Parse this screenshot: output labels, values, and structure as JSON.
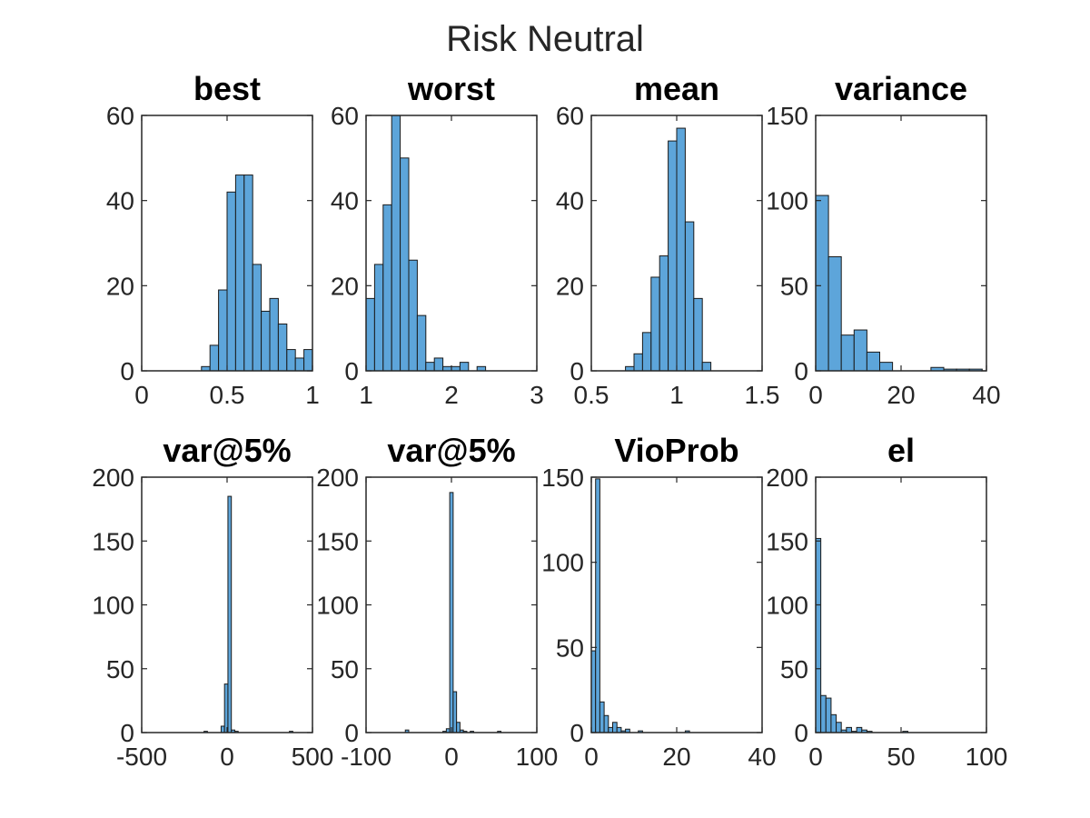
{
  "figure": {
    "title": "Risk Neutral",
    "bar_color": "#5DA5DA",
    "edge_color": "#1a1a1a"
  },
  "chart_data": [
    {
      "type": "bar",
      "title": "best",
      "xlim": [
        0,
        1
      ],
      "ylim": [
        0,
        60
      ],
      "xticks": [
        0,
        0.5,
        1
      ],
      "xtick_labels": [
        "0",
        "0.5",
        "1"
      ],
      "yticks": [
        0,
        20,
        40,
        60
      ],
      "ytick_labels": [
        "0",
        "20",
        "40",
        "60"
      ],
      "bins": [
        {
          "x0": 0.35,
          "x1": 0.4,
          "y": 1
        },
        {
          "x0": 0.4,
          "x1": 0.45,
          "y": 6
        },
        {
          "x0": 0.45,
          "x1": 0.5,
          "y": 19
        },
        {
          "x0": 0.5,
          "x1": 0.55,
          "y": 42
        },
        {
          "x0": 0.55,
          "x1": 0.6,
          "y": 46
        },
        {
          "x0": 0.6,
          "x1": 0.65,
          "y": 46
        },
        {
          "x0": 0.65,
          "x1": 0.7,
          "y": 25
        },
        {
          "x0": 0.7,
          "x1": 0.75,
          "y": 14
        },
        {
          "x0": 0.75,
          "x1": 0.8,
          "y": 17
        },
        {
          "x0": 0.8,
          "x1": 0.85,
          "y": 11
        },
        {
          "x0": 0.85,
          "x1": 0.9,
          "y": 5
        },
        {
          "x0": 0.9,
          "x1": 0.95,
          "y": 3
        },
        {
          "x0": 0.95,
          "x1": 1.0,
          "y": 5
        }
      ]
    },
    {
      "type": "bar",
      "title": "worst",
      "xlim": [
        1,
        3
      ],
      "ylim": [
        0,
        60
      ],
      "xticks": [
        1,
        2,
        3
      ],
      "xtick_labels": [
        "1",
        "2",
        "3"
      ],
      "yticks": [
        0,
        20,
        40,
        60
      ],
      "ytick_labels": [
        "0",
        "20",
        "40",
        "60"
      ],
      "bins": [
        {
          "x0": 1.0,
          "x1": 1.1,
          "y": 17
        },
        {
          "x0": 1.1,
          "x1": 1.2,
          "y": 25
        },
        {
          "x0": 1.2,
          "x1": 1.3,
          "y": 39
        },
        {
          "x0": 1.3,
          "x1": 1.4,
          "y": 60
        },
        {
          "x0": 1.4,
          "x1": 1.5,
          "y": 50
        },
        {
          "x0": 1.5,
          "x1": 1.6,
          "y": 26
        },
        {
          "x0": 1.6,
          "x1": 1.7,
          "y": 13
        },
        {
          "x0": 1.7,
          "x1": 1.8,
          "y": 2
        },
        {
          "x0": 1.8,
          "x1": 1.9,
          "y": 3
        },
        {
          "x0": 1.9,
          "x1": 2.0,
          "y": 1
        },
        {
          "x0": 2.0,
          "x1": 2.1,
          "y": 1
        },
        {
          "x0": 2.1,
          "x1": 2.2,
          "y": 2
        },
        {
          "x0": 2.2,
          "x1": 2.3,
          "y": 0
        },
        {
          "x0": 2.3,
          "x1": 2.4,
          "y": 1
        }
      ]
    },
    {
      "type": "bar",
      "title": "mean",
      "xlim": [
        0.5,
        1.5
      ],
      "ylim": [
        0,
        60
      ],
      "xticks": [
        0.5,
        1,
        1.5
      ],
      "xtick_labels": [
        "0.5",
        "1",
        "1.5"
      ],
      "yticks": [
        0,
        20,
        40,
        60
      ],
      "ytick_labels": [
        "0",
        "20",
        "40",
        "60"
      ],
      "bins": [
        {
          "x0": 0.7,
          "x1": 0.75,
          "y": 1
        },
        {
          "x0": 0.75,
          "x1": 0.8,
          "y": 4
        },
        {
          "x0": 0.8,
          "x1": 0.85,
          "y": 9
        },
        {
          "x0": 0.85,
          "x1": 0.9,
          "y": 22
        },
        {
          "x0": 0.9,
          "x1": 0.95,
          "y": 27
        },
        {
          "x0": 0.95,
          "x1": 1.0,
          "y": 54
        },
        {
          "x0": 1.0,
          "x1": 1.05,
          "y": 57
        },
        {
          "x0": 1.05,
          "x1": 1.1,
          "y": 35
        },
        {
          "x0": 1.1,
          "x1": 1.15,
          "y": 17
        },
        {
          "x0": 1.15,
          "x1": 1.2,
          "y": 2
        }
      ]
    },
    {
      "type": "bar",
      "title": "variance",
      "xlim": [
        0,
        40
      ],
      "ylim": [
        0,
        150
      ],
      "xticks": [
        0,
        20,
        40
      ],
      "xtick_labels": [
        "0",
        "20",
        "40"
      ],
      "yticks": [
        0,
        50,
        100,
        150
      ],
      "ytick_labels": [
        "0",
        "50",
        "100",
        "150"
      ],
      "bins": [
        {
          "x0": 0,
          "x1": 3,
          "y": 103
        },
        {
          "x0": 3,
          "x1": 6,
          "y": 67
        },
        {
          "x0": 6,
          "x1": 9,
          "y": 21
        },
        {
          "x0": 9,
          "x1": 12,
          "y": 24
        },
        {
          "x0": 12,
          "x1": 15,
          "y": 11
        },
        {
          "x0": 15,
          "x1": 18,
          "y": 5
        },
        {
          "x0": 18,
          "x1": 21,
          "y": 0
        },
        {
          "x0": 21,
          "x1": 24,
          "y": 0
        },
        {
          "x0": 24,
          "x1": 27,
          "y": 0
        },
        {
          "x0": 27,
          "x1": 30,
          "y": 2
        },
        {
          "x0": 30,
          "x1": 33,
          "y": 1
        },
        {
          "x0": 33,
          "x1": 36,
          "y": 1
        },
        {
          "x0": 36,
          "x1": 39,
          "y": 1
        }
      ]
    },
    {
      "type": "bar",
      "title": "var@5%",
      "xlim": [
        -500,
        500
      ],
      "ylim": [
        0,
        200
      ],
      "xticks": [
        -500,
        0,
        500
      ],
      "xtick_labels": [
        "-500",
        "0",
        "500"
      ],
      "yticks": [
        0,
        50,
        100,
        150,
        200
      ],
      "ytick_labels": [
        "0",
        "50",
        "100",
        "150",
        "200"
      ],
      "bins": [
        {
          "x0": -135,
          "x1": -115,
          "y": 1
        },
        {
          "x0": -35,
          "x1": -15,
          "y": 5
        },
        {
          "x0": -15,
          "x1": 5,
          "y": 38
        },
        {
          "x0": 5,
          "x1": 25,
          "y": 185
        },
        {
          "x0": 25,
          "x1": 45,
          "y": 2
        },
        {
          "x0": 45,
          "x1": 65,
          "y": 1
        },
        {
          "x0": 365,
          "x1": 385,
          "y": 1
        }
      ]
    },
    {
      "type": "bar",
      "title": "var@5%",
      "xlim": [
        -100,
        100
      ],
      "ylim": [
        0,
        200
      ],
      "xticks": [
        -100,
        0,
        100
      ],
      "xtick_labels": [
        "-100",
        "0",
        "100"
      ],
      "yticks": [
        0,
        50,
        100,
        150,
        200
      ],
      "ytick_labels": [
        "0",
        "50",
        "100",
        "150",
        "200"
      ],
      "bins": [
        {
          "x0": -54,
          "x1": -50,
          "y": 2
        },
        {
          "x0": -10,
          "x1": -6,
          "y": 1
        },
        {
          "x0": -6,
          "x1": -2,
          "y": 3
        },
        {
          "x0": -2,
          "x1": 2,
          "y": 188
        },
        {
          "x0": 2,
          "x1": 6,
          "y": 32
        },
        {
          "x0": 6,
          "x1": 10,
          "y": 8
        },
        {
          "x0": 10,
          "x1": 14,
          "y": 2
        },
        {
          "x0": 14,
          "x1": 18,
          "y": 1
        },
        {
          "x0": 22,
          "x1": 26,
          "y": 1
        },
        {
          "x0": 54,
          "x1": 58,
          "y": 1
        }
      ]
    },
    {
      "type": "bar",
      "title": "VioProb",
      "xlim": [
        0,
        40
      ],
      "ylim": [
        0,
        150
      ],
      "xticks": [
        0,
        20,
        40
      ],
      "xtick_labels": [
        "0",
        "20",
        "40"
      ],
      "yticks": [
        0,
        50,
        100,
        150
      ],
      "ytick_labels": [
        "0",
        "50",
        "100",
        "150"
      ],
      "bins": [
        {
          "x0": 0,
          "x1": 1,
          "y": 48
        },
        {
          "x0": 1,
          "x1": 2,
          "y": 149
        },
        {
          "x0": 2,
          "x1": 3,
          "y": 18
        },
        {
          "x0": 3,
          "x1": 4,
          "y": 10
        },
        {
          "x0": 4,
          "x1": 5,
          "y": 3
        },
        {
          "x0": 5,
          "x1": 6,
          "y": 6
        },
        {
          "x0": 6,
          "x1": 7,
          "y": 3
        },
        {
          "x0": 7,
          "x1": 8,
          "y": 1
        },
        {
          "x0": 8,
          "x1": 9,
          "y": 2
        },
        {
          "x0": 11,
          "x1": 12,
          "y": 1
        },
        {
          "x0": 22,
          "x1": 23,
          "y": 1
        }
      ]
    },
    {
      "type": "bar",
      "title": "el",
      "xlim": [
        0,
        100
      ],
      "ylim": [
        0,
        200
      ],
      "xticks": [
        0,
        50,
        100
      ],
      "xtick_labels": [
        "0",
        "50",
        "100"
      ],
      "yticks": [
        0,
        50,
        100,
        150,
        200
      ],
      "ytick_labels": [
        "0",
        "50",
        "100",
        "150",
        "200"
      ],
      "bins": [
        {
          "x0": 0,
          "x1": 3,
          "y": 152
        },
        {
          "x0": 3,
          "x1": 6,
          "y": 29
        },
        {
          "x0": 6,
          "x1": 9,
          "y": 27
        },
        {
          "x0": 9,
          "x1": 12,
          "y": 14
        },
        {
          "x0": 12,
          "x1": 15,
          "y": 8
        },
        {
          "x0": 15,
          "x1": 18,
          "y": 2
        },
        {
          "x0": 18,
          "x1": 21,
          "y": 4
        },
        {
          "x0": 21,
          "x1": 24,
          "y": 1
        },
        {
          "x0": 24,
          "x1": 27,
          "y": 4
        },
        {
          "x0": 27,
          "x1": 30,
          "y": 2
        },
        {
          "x0": 30,
          "x1": 33,
          "y": 1
        },
        {
          "x0": 51,
          "x1": 54,
          "y": 1
        }
      ]
    }
  ]
}
